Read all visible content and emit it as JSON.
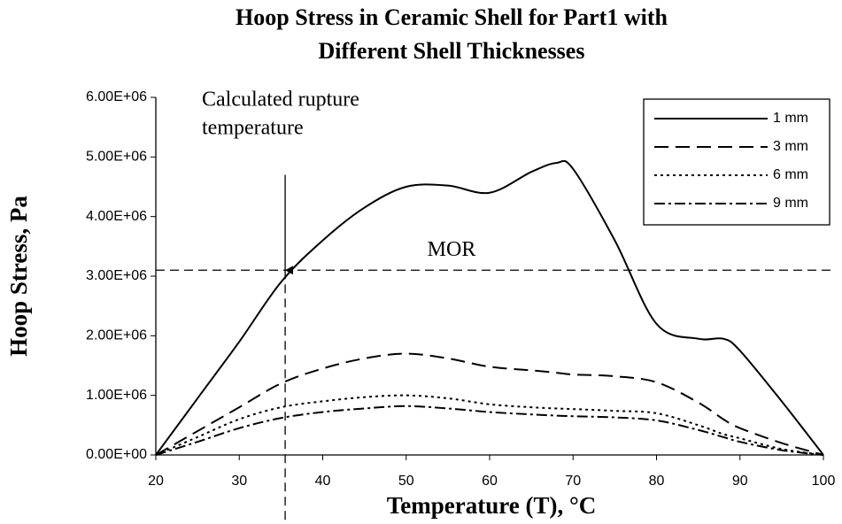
{
  "chart_data": {
    "type": "line",
    "title": [
      "Hoop Stress in Ceramic Shell for Part1 with",
      "Different Shell Thicknesses"
    ],
    "x_label": "Temperature (T), °C",
    "y_label": "Hoop Stress, Pa",
    "x": [
      20,
      25,
      30,
      35,
      40,
      45,
      50,
      55,
      60,
      65,
      68,
      70,
      75,
      80,
      85,
      88,
      90,
      95,
      100
    ],
    "series": [
      {
        "name": "1 mm",
        "color": "#000000",
        "dash": "none",
        "values": [
          0,
          950000,
          1900000,
          2900000,
          3600000,
          4150000,
          4500000,
          4520000,
          4400000,
          4750000,
          4900000,
          4800000,
          3600000,
          2200000,
          1950000,
          1950000,
          1750000,
          900000,
          0
        ]
      },
      {
        "name": "3 mm",
        "color": "#000000",
        "dash": "16 8",
        "values": [
          0,
          400000,
          800000,
          1200000,
          1450000,
          1620000,
          1700000,
          1620000,
          1480000,
          1420000,
          1380000,
          1350000,
          1320000,
          1220000,
          880000,
          600000,
          450000,
          200000,
          0
        ]
      },
      {
        "name": "6 mm",
        "color": "#000000",
        "dash": "3 4",
        "values": [
          0,
          300000,
          600000,
          800000,
          900000,
          970000,
          1000000,
          950000,
          850000,
          800000,
          780000,
          770000,
          740000,
          700000,
          500000,
          350000,
          280000,
          100000,
          0
        ]
      },
      {
        "name": "9 mm",
        "color": "#000000",
        "dash": "12 4 3 4",
        "values": [
          0,
          220000,
          450000,
          620000,
          720000,
          780000,
          820000,
          780000,
          720000,
          680000,
          660000,
          650000,
          630000,
          580000,
          420000,
          300000,
          220000,
          80000,
          0
        ]
      }
    ],
    "xlim": [
      20,
      100
    ],
    "xticks": [
      20,
      30,
      40,
      50,
      60,
      70,
      80,
      90,
      100
    ],
    "ylim": [
      0,
      6000000
    ],
    "yticks": [
      {
        "value": 0,
        "label": "0.00E+00"
      },
      {
        "value": 1000000,
        "label": "1.00E+06"
      },
      {
        "value": 2000000,
        "label": "2.00E+06"
      },
      {
        "value": 3000000,
        "label": "3.00E+06"
      },
      {
        "value": 4000000,
        "label": "4.00E+06"
      },
      {
        "value": 5000000,
        "label": "5.00E+06"
      },
      {
        "value": 6000000,
        "label": "6.00E+06"
      }
    ],
    "legend": "top-right",
    "annotations": {
      "mor": {
        "text": "MOR",
        "value": 3100000
      },
      "rupture": {
        "text": [
          "Calculated rupture",
          "temperature"
        ],
        "x": 35.5,
        "arrow_from": 4700000,
        "arrow_to": 3100000
      }
    }
  }
}
